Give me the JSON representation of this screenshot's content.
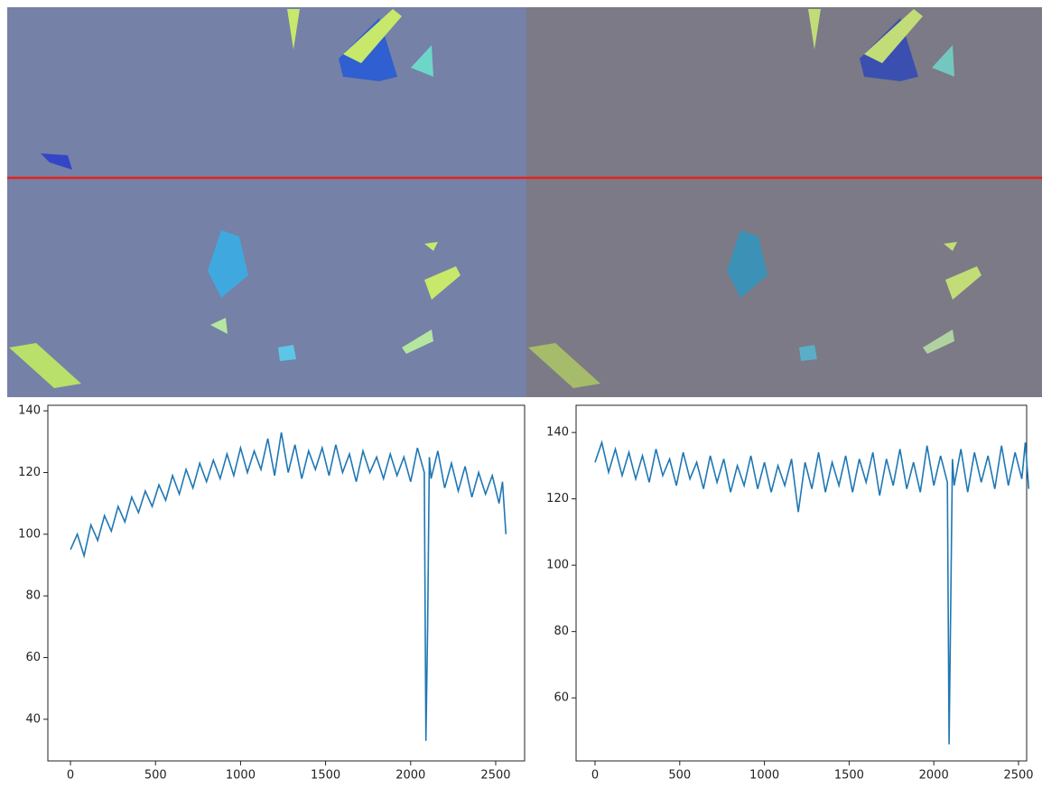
{
  "chart_data": [
    {
      "type": "line",
      "color": "#1f77b4",
      "x": [
        0,
        40,
        80,
        120,
        160,
        200,
        240,
        280,
        320,
        360,
        400,
        440,
        480,
        520,
        560,
        600,
        640,
        680,
        720,
        760,
        800,
        840,
        880,
        920,
        960,
        1000,
        1040,
        1080,
        1120,
        1160,
        1200,
        1240,
        1280,
        1320,
        1360,
        1400,
        1440,
        1480,
        1520,
        1560,
        1600,
        1640,
        1680,
        1720,
        1760,
        1800,
        1840,
        1880,
        1920,
        1960,
        2000,
        2040,
        2080,
        2090,
        2100,
        2110,
        2120,
        2160,
        2200,
        2240,
        2280,
        2320,
        2360,
        2400,
        2440,
        2480,
        2520,
        2540,
        2560
      ],
      "values": [
        95,
        100,
        93,
        103,
        98,
        106,
        101,
        109,
        104,
        112,
        107,
        114,
        109,
        116,
        111,
        119,
        113,
        121,
        115,
        123,
        117,
        124,
        118,
        126,
        119,
        128,
        120,
        127,
        121,
        131,
        119,
        133,
        120,
        129,
        118,
        127,
        121,
        128,
        119,
        129,
        120,
        126,
        117,
        127,
        120,
        125,
        118,
        126,
        119,
        125,
        117,
        128,
        120,
        33,
        70,
        125,
        118,
        127,
        115,
        123,
        114,
        122,
        112,
        120,
        113,
        119,
        110,
        117,
        100
      ],
      "xlim": [
        -133,
        2670
      ],
      "ylim": [
        26.5,
        141.8
      ],
      "xticks": [
        0,
        500,
        1000,
        1500,
        2000,
        2500
      ],
      "yticks": [
        40,
        60,
        80,
        100,
        120,
        140
      ]
    },
    {
      "type": "line",
      "color": "#1f77b4",
      "x": [
        0,
        40,
        80,
        120,
        160,
        200,
        240,
        280,
        320,
        360,
        400,
        440,
        480,
        520,
        560,
        600,
        640,
        680,
        720,
        760,
        800,
        840,
        880,
        920,
        960,
        1000,
        1040,
        1080,
        1120,
        1160,
        1200,
        1240,
        1280,
        1320,
        1360,
        1400,
        1440,
        1480,
        1520,
        1560,
        1600,
        1640,
        1680,
        1720,
        1760,
        1800,
        1840,
        1880,
        1920,
        1960,
        2000,
        2040,
        2080,
        2090,
        2100,
        2110,
        2120,
        2160,
        2200,
        2240,
        2280,
        2320,
        2360,
        2400,
        2440,
        2480,
        2520,
        2540,
        2560
      ],
      "values": [
        131,
        137,
        128,
        135,
        127,
        134,
        126,
        133,
        125,
        135,
        127,
        132,
        124,
        134,
        126,
        131,
        123,
        133,
        125,
        132,
        122,
        130,
        124,
        133,
        123,
        131,
        122,
        130,
        124,
        132,
        116,
        131,
        123,
        134,
        122,
        131,
        124,
        133,
        122,
        132,
        125,
        134,
        121,
        132,
        124,
        135,
        123,
        131,
        122,
        136,
        124,
        133,
        125,
        46,
        90,
        132,
        124,
        135,
        122,
        134,
        125,
        133,
        123,
        136,
        124,
        134,
        126,
        137,
        123
      ],
      "xlim": [
        -112,
        2548
      ],
      "ylim": [
        41,
        148.2
      ],
      "xticks": [
        0,
        500,
        1000,
        1500,
        2000,
        2500
      ],
      "yticks": [
        60,
        80,
        100,
        120,
        140
      ]
    }
  ]
}
